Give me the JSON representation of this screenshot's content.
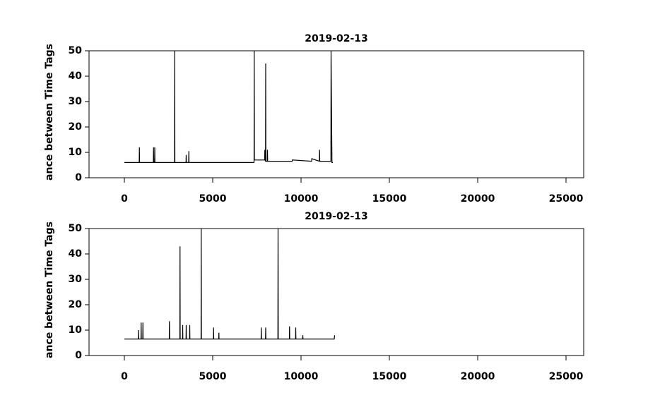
{
  "chart_data": [
    {
      "type": "line",
      "title": "2019-02-13",
      "y_label": "ance between Time Tags",
      "x": [
        0,
        840,
        850,
        860,
        1640,
        1650,
        1660,
        1710,
        1720,
        1730,
        2840,
        2850,
        2860,
        3490,
        3500,
        3510,
        3640,
        3650,
        3660,
        7340,
        7350,
        7360,
        7940,
        7950,
        7960,
        7990,
        8000,
        8010,
        8090,
        8100,
        8110,
        9500,
        9510,
        10600,
        10610,
        11040,
        11050,
        11060,
        11690,
        11700,
        11750,
        11800
      ],
      "series": [
        {
          "color": "#000000",
          "values": [
            6,
            6,
            12,
            6,
            6,
            12,
            6,
            6,
            12,
            6,
            6,
            50,
            6,
            6,
            9,
            6,
            6,
            10.5,
            6,
            6,
            50,
            7,
            7,
            11,
            7,
            6.5,
            45,
            6.5,
            6.5,
            11,
            6.5,
            6.5,
            7,
            6.5,
            7.5,
            6.5,
            11,
            6.5,
            6.5,
            50,
            6,
            6
          ]
        }
      ],
      "xlim": [
        -2000,
        26000
      ],
      "xticks": [
        0,
        5000,
        10000,
        15000,
        20000,
        25000
      ],
      "ylim": [
        0,
        50
      ],
      "yticks": [
        0,
        10,
        20,
        30,
        40,
        50
      ]
    },
    {
      "type": "line",
      "title": "2019-02-13",
      "y_label": "ance between Time Tags",
      "x": [
        0,
        790,
        800,
        810,
        940,
        950,
        960,
        1040,
        1050,
        1060,
        2540,
        2550,
        2560,
        3140,
        3150,
        3160,
        3290,
        3300,
        3310,
        3490,
        3500,
        3510,
        3690,
        3700,
        3710,
        4340,
        4350,
        4360,
        5040,
        5050,
        5060,
        5340,
        5350,
        5360,
        7740,
        7750,
        7760,
        7990,
        8000,
        8010,
        8690,
        8700,
        8710,
        9340,
        9350,
        9360,
        9690,
        9700,
        9710,
        10090,
        10100,
        10110,
        11880,
        11900
      ],
      "series": [
        {
          "color": "#000000",
          "values": [
            6.5,
            6.5,
            10,
            6.5,
            6.5,
            13,
            6.5,
            6.5,
            13,
            6.5,
            6.5,
            13.5,
            6.5,
            6.5,
            43,
            6.5,
            6.5,
            12,
            6.5,
            6.5,
            12,
            6.5,
            6.5,
            12,
            6.5,
            6.5,
            50,
            6.5,
            6.5,
            11,
            6.5,
            6.5,
            9,
            6.5,
            6.5,
            11,
            6.5,
            6.5,
            11,
            6.5,
            6.5,
            50,
            6.5,
            6.5,
            11.5,
            6.5,
            6.5,
            11,
            6.5,
            6.5,
            8,
            6.5,
            6.5,
            8
          ]
        }
      ],
      "xlim": [
        -2000,
        26000
      ],
      "xticks": [
        0,
        5000,
        10000,
        15000,
        20000,
        25000
      ],
      "ylim": [
        0,
        50
      ],
      "yticks": [
        0,
        10,
        20,
        30,
        40,
        50
      ]
    }
  ]
}
